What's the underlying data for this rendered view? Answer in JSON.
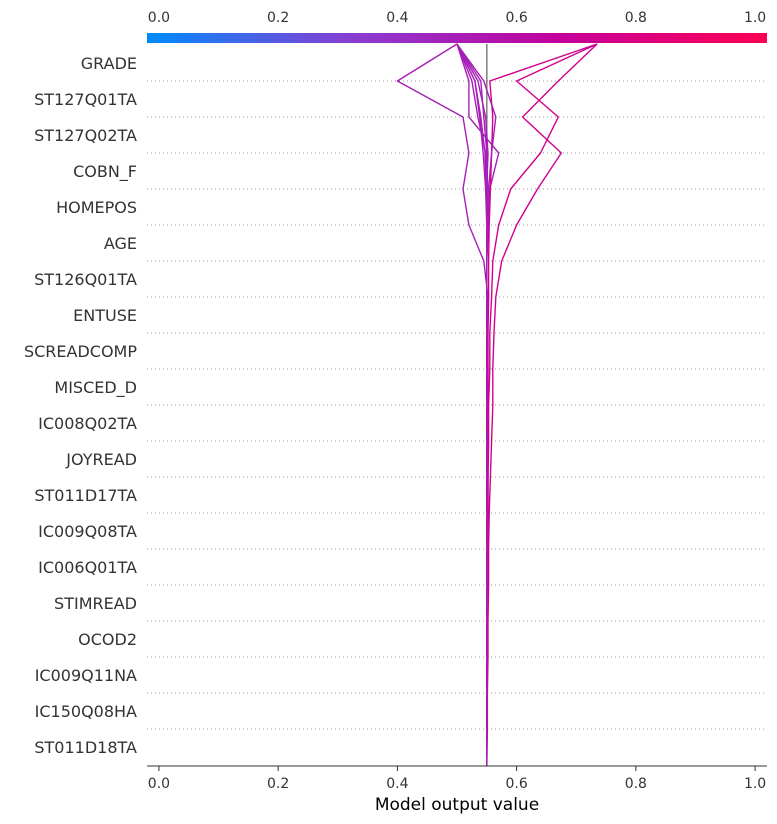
{
  "chart_data": {
    "type": "line",
    "title": "",
    "xlabel": "Model output value",
    "ylabel": "",
    "xlim": [
      -0.02,
      1.02
    ],
    "base_value": 0.55,
    "top_axis_ticks": [
      "0.0",
      "0.2",
      "0.4",
      "0.6",
      "0.8",
      "1.0"
    ],
    "bottom_axis_ticks": [
      "0.0",
      "0.2",
      "0.4",
      "0.6",
      "0.8",
      "1.0"
    ],
    "tick_values": [
      0.0,
      0.2,
      0.4,
      0.6,
      0.8,
      1.0
    ],
    "colormap": [
      "#008bfb",
      "#8a3cd1",
      "#c4009c",
      "#ff0052"
    ],
    "grid": "dotted horizontal",
    "features": [
      "GRADE",
      "ST127Q01TA",
      "ST127Q02TA",
      "COBN_F",
      "HOMEPOS",
      "AGE",
      "ST126Q01TA",
      "ENTUSE",
      "SCREADCOMP",
      "MISCED_D",
      "IC008Q02TA",
      "JOYREAD",
      "ST011D17TA",
      "IC009Q08TA",
      "IC006Q01TA",
      "STIMREAD",
      "OCOD2",
      "IC009Q11NA",
      "IC150Q08HA",
      "ST011D18TA"
    ],
    "series": [
      {
        "x": [
          0.55,
          0.55,
          0.55,
          0.55,
          0.55,
          0.551,
          0.551,
          0.552,
          0.552,
          0.552,
          0.552,
          0.552,
          0.55,
          0.55,
          0.55,
          0.553,
          0.555,
          0.57,
          0.52,
          0.52,
          0.5
        ]
      },
      {
        "x": [
          0.55,
          0.55,
          0.55,
          0.55,
          0.55,
          0.55,
          0.551,
          0.552,
          0.552,
          0.553,
          0.553,
          0.555,
          0.555,
          0.558,
          0.56,
          0.57,
          0.59,
          0.64,
          0.67,
          0.6,
          0.735
        ]
      },
      {
        "x": [
          0.55,
          0.55,
          0.55,
          0.55,
          0.55,
          0.55,
          0.55,
          0.55,
          0.55,
          0.55,
          0.55,
          0.551,
          0.551,
          0.552,
          0.545,
          0.52,
          0.51,
          0.52,
          0.51,
          0.4,
          0.5
        ]
      },
      {
        "x": [
          0.55,
          0.551,
          0.551,
          0.552,
          0.552,
          0.553,
          0.553,
          0.554,
          0.556,
          0.558,
          0.56,
          0.56,
          0.562,
          0.565,
          0.575,
          0.6,
          0.635,
          0.675,
          0.61,
          0.67,
          0.735
        ]
      },
      {
        "x": [
          0.55,
          0.55,
          0.55,
          0.55,
          0.55,
          0.55,
          0.55,
          0.55,
          0.55,
          0.551,
          0.551,
          0.552,
          0.552,
          0.553,
          0.553,
          0.554,
          0.556,
          0.558,
          0.56,
          0.555,
          0.735
        ]
      },
      {
        "x": [
          0.55,
          0.55,
          0.55,
          0.55,
          0.55,
          0.55,
          0.55,
          0.55,
          0.55,
          0.55,
          0.55,
          0.55,
          0.55,
          0.55,
          0.55,
          0.55,
          0.552,
          0.548,
          0.535,
          0.525,
          0.5
        ]
      },
      {
        "x": [
          0.55,
          0.55,
          0.55,
          0.55,
          0.55,
          0.55,
          0.55,
          0.55,
          0.55,
          0.55,
          0.55,
          0.55,
          0.55,
          0.55,
          0.55,
          0.55,
          0.548,
          0.544,
          0.538,
          0.53,
          0.5
        ]
      },
      {
        "x": [
          0.55,
          0.55,
          0.55,
          0.55,
          0.55,
          0.55,
          0.55,
          0.55,
          0.55,
          0.55,
          0.55,
          0.55,
          0.55,
          0.55,
          0.55,
          0.55,
          0.549,
          0.547,
          0.54,
          0.53,
          0.5
        ]
      },
      {
        "x": [
          0.55,
          0.55,
          0.55,
          0.55,
          0.55,
          0.55,
          0.55,
          0.55,
          0.55,
          0.55,
          0.55,
          0.55,
          0.55,
          0.55,
          0.55,
          0.551,
          0.553,
          0.558,
          0.565,
          0.545,
          0.5
        ]
      },
      {
        "x": [
          0.55,
          0.55,
          0.55,
          0.55,
          0.55,
          0.55,
          0.55,
          0.55,
          0.55,
          0.55,
          0.55,
          0.55,
          0.55,
          0.55,
          0.55,
          0.55,
          0.55,
          0.552,
          0.548,
          0.535,
          0.5
        ]
      },
      {
        "x": [
          0.55,
          0.55,
          0.55,
          0.55,
          0.55,
          0.55,
          0.55,
          0.55,
          0.55,
          0.55,
          0.55,
          0.55,
          0.55,
          0.55,
          0.55,
          0.55,
          0.55,
          0.55,
          0.545,
          0.54,
          0.5
        ]
      }
    ]
  }
}
